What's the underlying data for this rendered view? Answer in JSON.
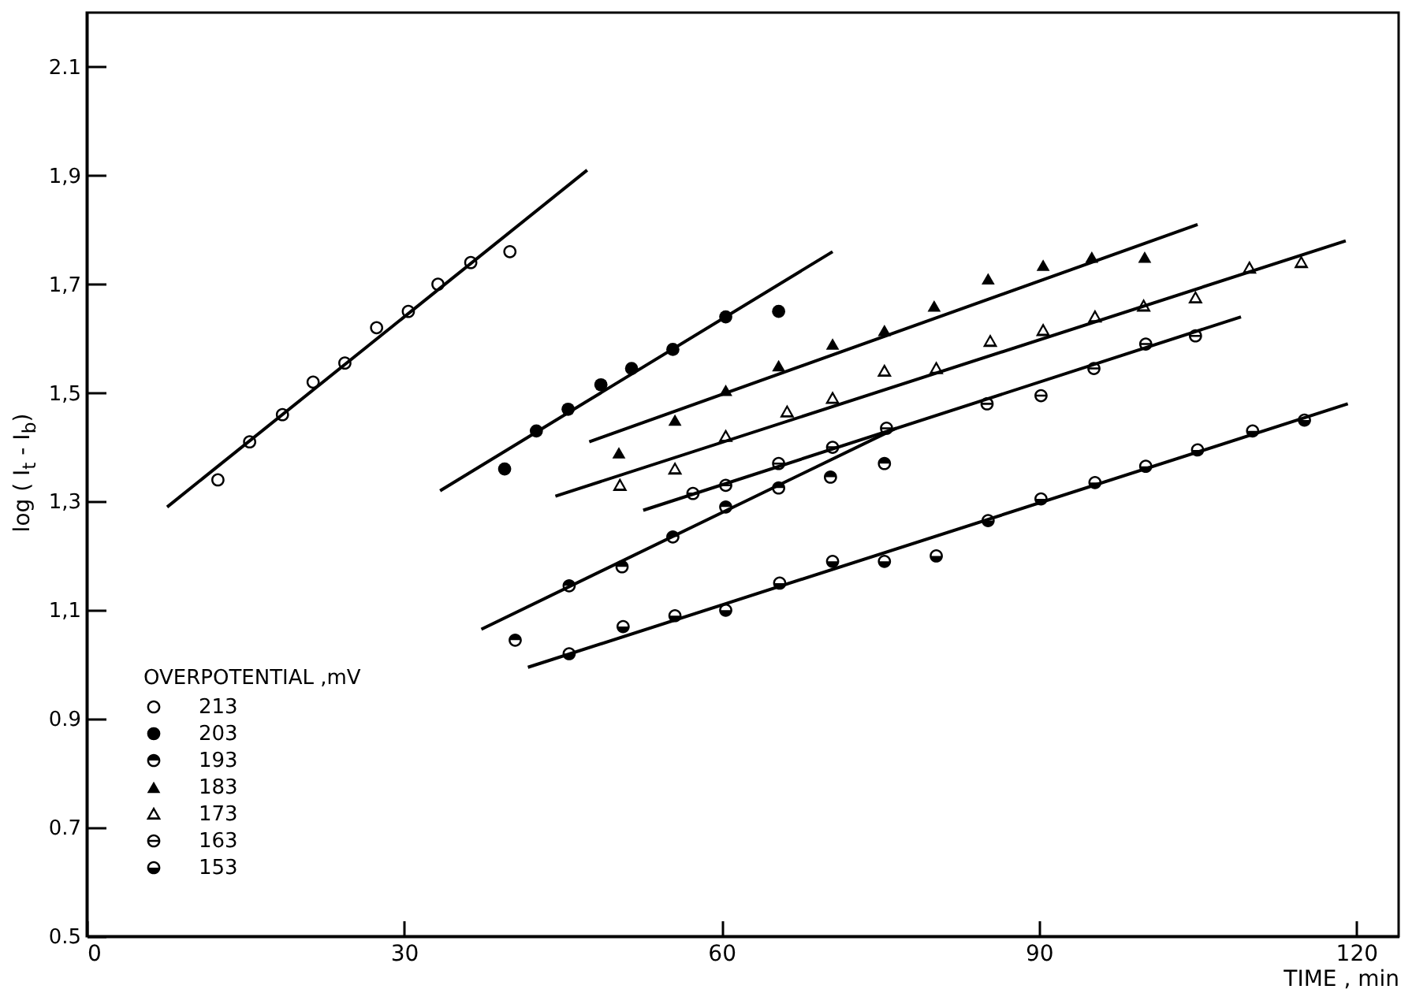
{
  "chart_data": {
    "type": "scatter",
    "xlabel": "TIME , min",
    "ylabel": "log ( I$_{t}$ - I$_{b}$)",
    "legend_title": "OVERPOTENTIAL ,mV",
    "legend": "bottom left",
    "grid": false,
    "xlim": [
      0,
      124
    ],
    "xticks": [
      0,
      30,
      60,
      90,
      120
    ],
    "ylim": [
      0.5,
      2.2
    ],
    "yticks": [
      0.5,
      0.7,
      0.9,
      {
        "value": 1.1,
        "label": "1,1"
      },
      {
        "value": 1.3,
        "label": "1,3"
      },
      {
        "value": 1.5,
        "label": "1,5"
      },
      {
        "value": 1.7,
        "label": "1,7"
      },
      {
        "value": 1.9,
        "label": "1,9"
      },
      2.1
    ],
    "series": [
      {
        "type": "scatter",
        "name": "213",
        "color": "#000000",
        "marker": "circle-open",
        "x": [
          12.4,
          15.4,
          18.5,
          21.4,
          24.4,
          27.4,
          30.4,
          33.2,
          36.3,
          40
        ],
        "values": [
          1.34,
          1.41,
          1.46,
          1.52,
          1.555,
          1.62,
          1.65,
          1.7,
          1.74,
          1.76
        ]
      },
      {
        "type": "scatter",
        "name": "203",
        "color": "#000000",
        "marker": "circle",
        "x": [
          39.5,
          42.5,
          45.5,
          48.6,
          51.5,
          55.4,
          60.4,
          65.4
        ],
        "values": [
          1.36,
          1.43,
          1.47,
          1.515,
          1.545,
          1.58,
          1.64,
          1.65
        ]
      },
      {
        "type": "scatter",
        "name": "193",
        "color": "#000000",
        "marker": "circle-top-half",
        "x": [
          40.5,
          45.6,
          50.6,
          55.4,
          60.4,
          65.4,
          70.3,
          75.4
        ],
        "values": [
          1.045,
          1.145,
          1.18,
          1.235,
          1.29,
          1.325,
          1.345,
          1.37
        ]
      },
      {
        "type": "scatter",
        "name": "183",
        "color": "#000000",
        "marker": "triangle",
        "x": [
          50.3,
          55.6,
          60.4,
          65.4,
          70.5,
          75.4,
          80.1,
          85.2,
          90.4,
          95.0,
          100
        ],
        "values": [
          1.39,
          1.45,
          1.505,
          1.55,
          1.59,
          1.615,
          1.66,
          1.71,
          1.735,
          1.75,
          1.75
        ]
      },
      {
        "type": "scatter",
        "name": "173",
        "color": "#000000",
        "marker": "triangle-open",
        "x": [
          50.4,
          55.6,
          60.4,
          66.2,
          70.5,
          75.4,
          80.3,
          85.4,
          90.4,
          95.3,
          99.9,
          104.8,
          109.9,
          114.8
        ],
        "values": [
          1.33,
          1.36,
          1.42,
          1.465,
          1.49,
          1.54,
          1.545,
          1.595,
          1.615,
          1.64,
          1.66,
          1.675,
          1.73,
          1.74
        ]
      },
      {
        "type": "scatter",
        "name": "163",
        "color": "#000000",
        "marker": "circle-bar",
        "x": [
          57.3,
          60.4,
          65.4,
          70.5,
          75.6,
          85.1,
          90.2,
          95.2,
          100.1,
          104.8
        ],
        "values": [
          1.315,
          1.33,
          1.37,
          1.4,
          1.435,
          1.48,
          1.495,
          1.545,
          1.59,
          1.605
        ]
      },
      {
        "type": "scatter",
        "name": "153",
        "color": "#000000",
        "marker": "circle-bottom-half",
        "x": [
          45.6,
          50.7,
          55.6,
          60.4,
          65.5,
          70.5,
          75.4,
          80.3,
          85.2,
          90.2,
          95.3,
          100.1,
          105,
          110.2,
          115.1
        ],
        "values": [
          1.02,
          1.07,
          1.09,
          1.1,
          1.15,
          1.19,
          1.19,
          1.2,
          1.265,
          1.305,
          1.335,
          1.365,
          1.395,
          1.43,
          1.45
        ]
      },
      {
        "type": "line",
        "color": "#000000",
        "x": [
          7.6,
          47.3
        ],
        "values": [
          1.29,
          1.91
        ]
      },
      {
        "type": "line",
        "color": "#000000",
        "x": [
          33.4,
          70.5
        ],
        "values": [
          1.32,
          1.76
        ]
      },
      {
        "type": "line",
        "color": "#000000",
        "x": [
          37.3,
          76.5
        ],
        "values": [
          1.065,
          1.435
        ]
      },
      {
        "type": "line",
        "color": "#000000",
        "x": [
          47.5,
          105
        ],
        "values": [
          1.41,
          1.81
        ]
      },
      {
        "type": "line",
        "color": "#000000",
        "x": [
          44.3,
          119
        ],
        "values": [
          1.31,
          1.78
        ]
      },
      {
        "type": "line",
        "color": "#000000",
        "x": [
          52.6,
          109.1
        ],
        "values": [
          1.284,
          1.64
        ]
      },
      {
        "type": "line",
        "color": "#000000",
        "x": [
          41.7,
          119.2
        ],
        "values": [
          0.995,
          1.48
        ]
      }
    ]
  }
}
